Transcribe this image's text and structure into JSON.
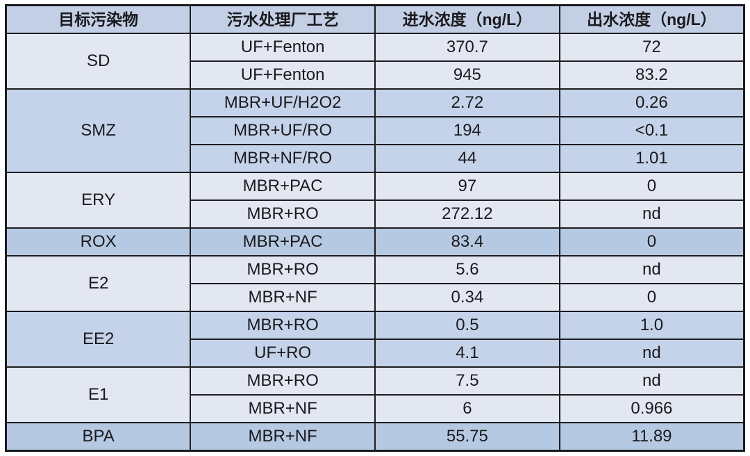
{
  "table": {
    "columns": [
      "目标污染物",
      "污水处理厂工艺",
      "进水浓度（ng/L）",
      "出水浓度（ng/L）"
    ],
    "groups": [
      {
        "pollutant": "SD",
        "shade": "light",
        "rows": [
          {
            "process": "UF+Fenton",
            "influent": "370.7",
            "effluent": "72"
          },
          {
            "process": "UF+Fenton",
            "influent": "945",
            "effluent": "83.2"
          }
        ]
      },
      {
        "pollutant": "SMZ",
        "shade": "medium",
        "rows": [
          {
            "process": "MBR+UF/H2O2",
            "influent": "2.72",
            "effluent": "0.26"
          },
          {
            "process": "MBR+UF/RO",
            "influent": "194",
            "effluent": "<0.1"
          },
          {
            "process": "MBR+NF/RO",
            "influent": "44",
            "effluent": "1.01"
          }
        ]
      },
      {
        "pollutant": "ERY",
        "shade": "light",
        "rows": [
          {
            "process": "MBR+PAC",
            "influent": "97",
            "effluent": "0"
          },
          {
            "process": "MBR+RO",
            "influent": "272.12",
            "effluent": "nd"
          }
        ]
      },
      {
        "pollutant": "ROX",
        "shade": "dark",
        "rows": [
          {
            "process": "MBR+PAC",
            "influent": "83.4",
            "effluent": "0"
          }
        ]
      },
      {
        "pollutant": "E2",
        "shade": "light",
        "rows": [
          {
            "process": "MBR+RO",
            "influent": "5.6",
            "effluent": "nd"
          },
          {
            "process": "MBR+NF",
            "influent": "0.34",
            "effluent": "0"
          }
        ]
      },
      {
        "pollutant": "EE2",
        "shade": "medium",
        "rows": [
          {
            "process": "MBR+RO",
            "influent": "0.5",
            "effluent": "1.0"
          },
          {
            "process": "UF+RO",
            "influent": "4.1",
            "effluent": "nd"
          }
        ]
      },
      {
        "pollutant": "E1",
        "shade": "light",
        "rows": [
          {
            "process": "MBR+RO",
            "influent": "7.5",
            "effluent": "nd"
          },
          {
            "process": "MBR+NF",
            "influent": "6",
            "effluent": "0.966"
          }
        ]
      },
      {
        "pollutant": "BPA",
        "shade": "dark",
        "rows": [
          {
            "process": "MBR+NF",
            "influent": "55.75",
            "effluent": "11.89"
          }
        ]
      }
    ]
  },
  "colors": {
    "header_bg": "#c3cfe4",
    "light_bg": "#e3e7f2",
    "medium_bg": "#c5d3ea",
    "dark_bg": "#b6c9e2",
    "border": "#1c1c1e",
    "text": "#1a1a1d",
    "page_bg": "#ffffff"
  }
}
